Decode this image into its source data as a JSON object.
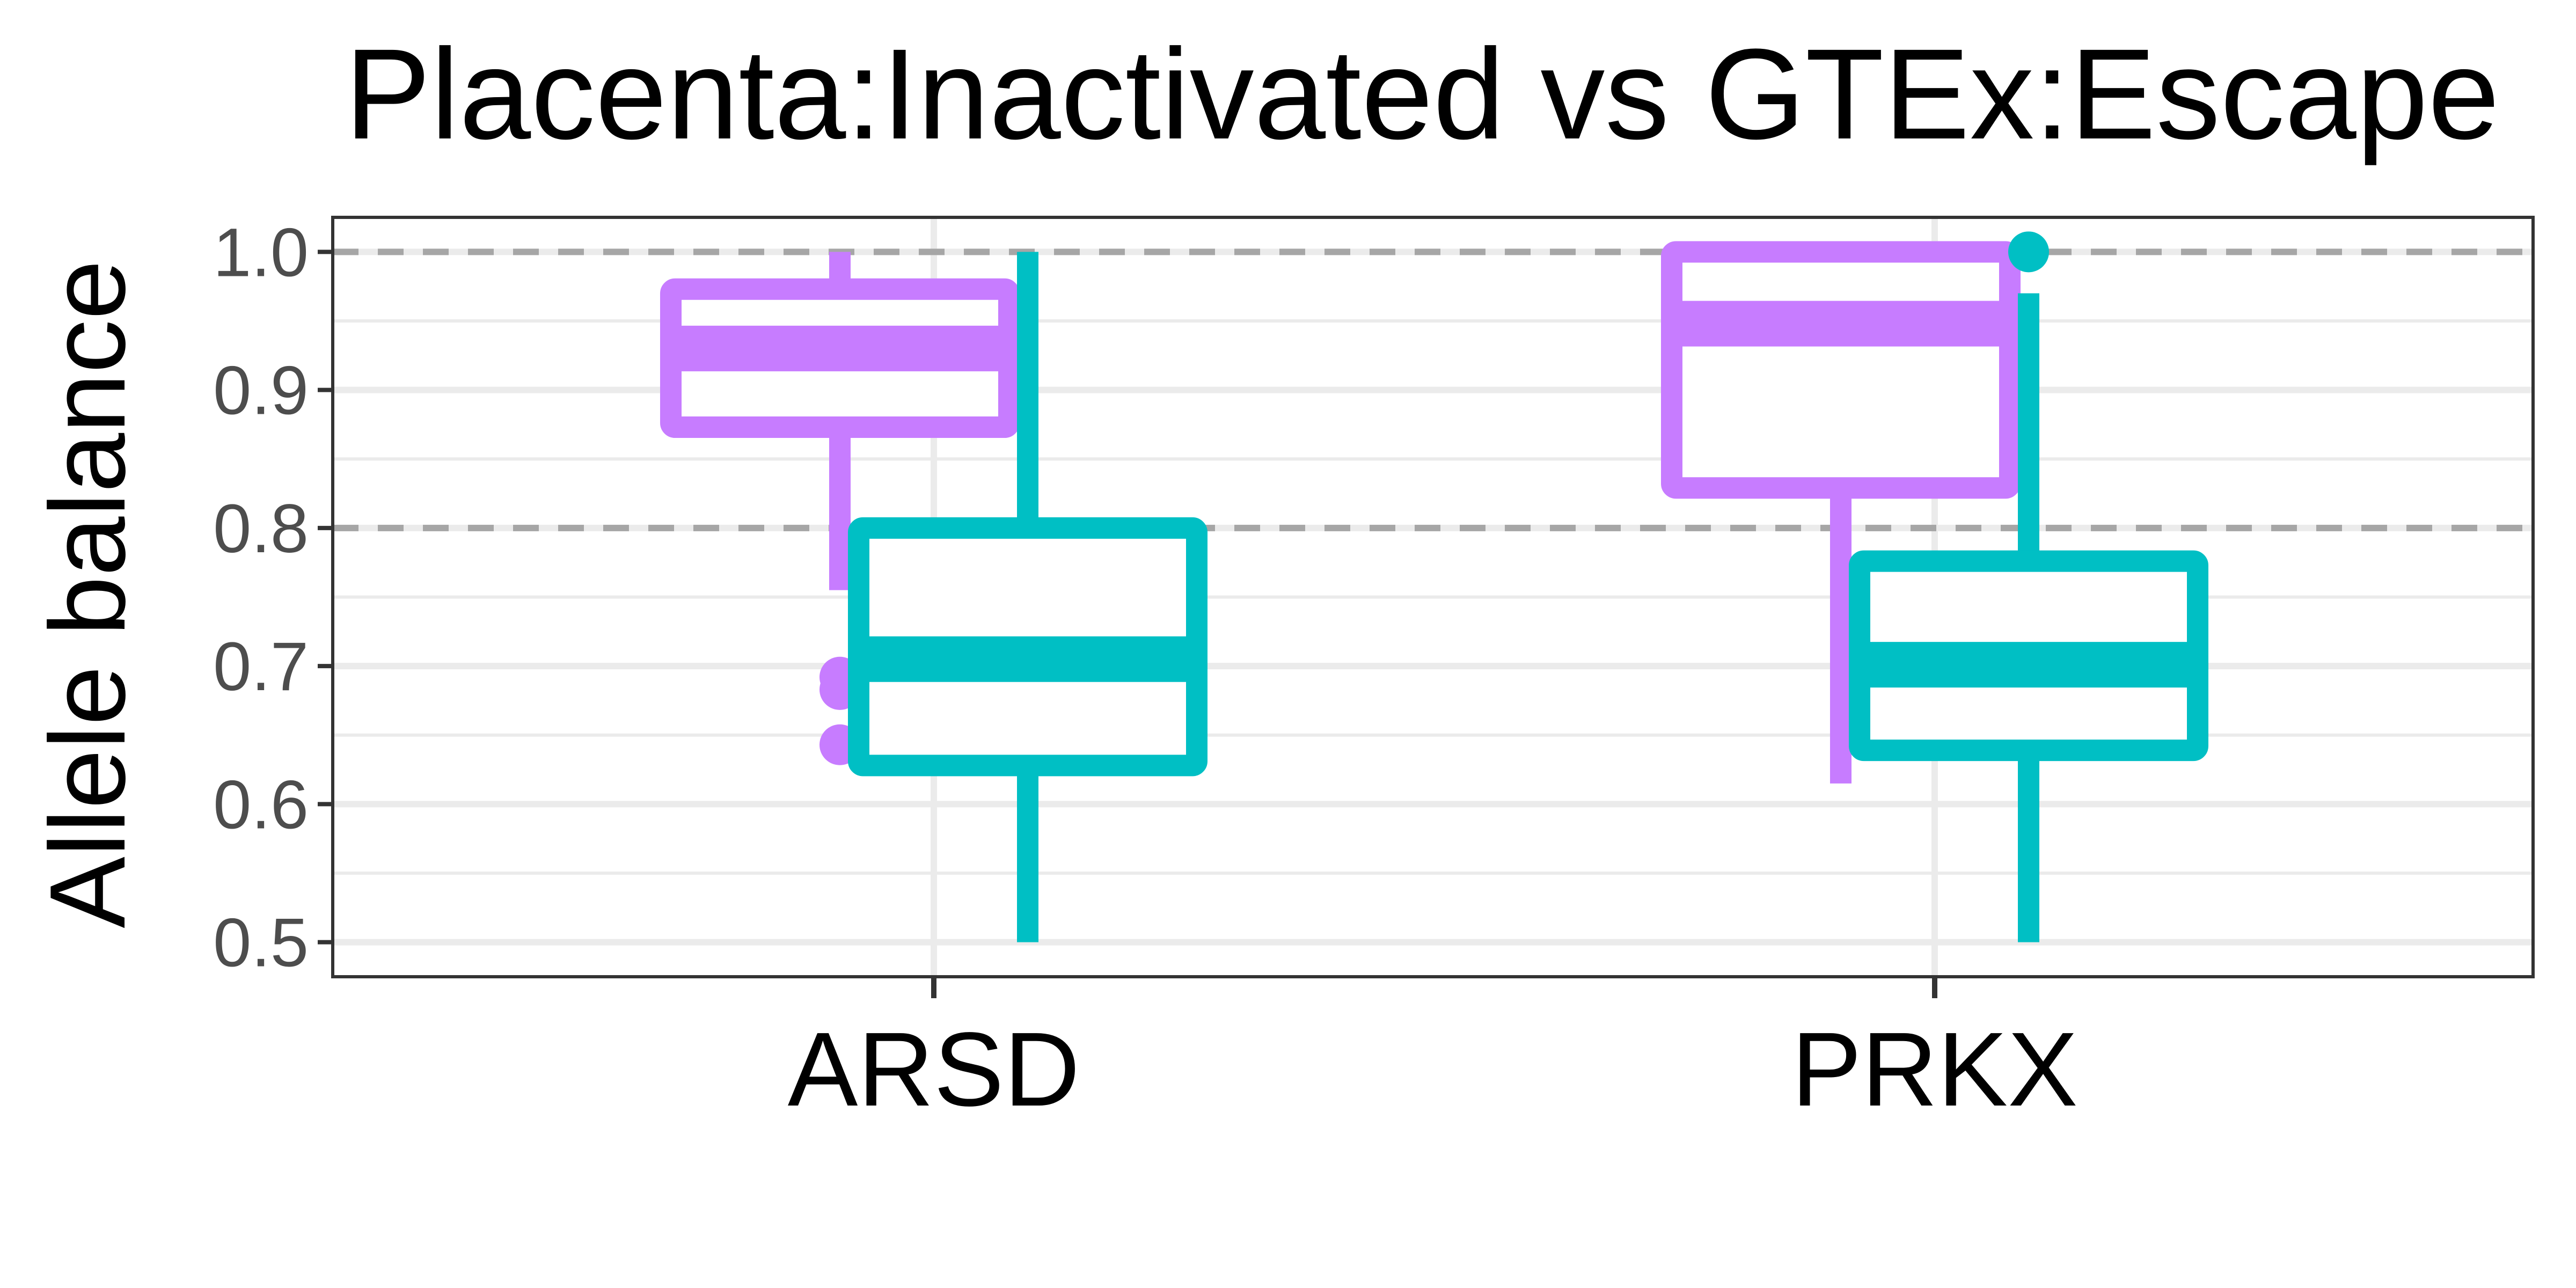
{
  "chart_data": {
    "type": "boxplot",
    "title": "Placenta:Inactivated vs GTEx:Escape",
    "xlabel": "",
    "ylabel": "Allele balance",
    "ylim": [
      0.475,
      1.025
    ],
    "y_ticks": [
      "0.5",
      "0.6",
      "0.7",
      "0.8",
      "0.9",
      "1.0"
    ],
    "y_tick_values": [
      0.5,
      0.6,
      0.7,
      0.8,
      0.9,
      1.0
    ],
    "categories": [
      "ARSD",
      "PRKX"
    ],
    "grid": true,
    "reference_lines": [
      0.8,
      1.0
    ],
    "reference_line_color": "#a6a6a6",
    "series": [
      {
        "color": "#c77cff",
        "boxes": [
          {
            "category": "ARSD",
            "whisker_low": 0.755,
            "q1": 0.873,
            "median": 0.93,
            "q3": 0.973,
            "whisker_high": 1.0,
            "outliers": [
              0.692,
              0.683,
              0.643
            ]
          },
          {
            "category": "PRKX",
            "whisker_low": 0.615,
            "q1": 0.829,
            "median": 0.948,
            "q3": 1.0,
            "whisker_high": 1.0,
            "outliers": []
          }
        ]
      },
      {
        "color": "#00bfc4",
        "boxes": [
          {
            "category": "ARSD",
            "whisker_low": 0.5,
            "q1": 0.628,
            "median": 0.705,
            "q3": 0.8,
            "whisker_high": 1.0,
            "outliers": []
          },
          {
            "category": "PRKX",
            "whisker_low": 0.5,
            "q1": 0.639,
            "median": 0.701,
            "q3": 0.776,
            "whisker_high": 0.97,
            "outliers": [
              1.0
            ]
          }
        ]
      }
    ]
  }
}
